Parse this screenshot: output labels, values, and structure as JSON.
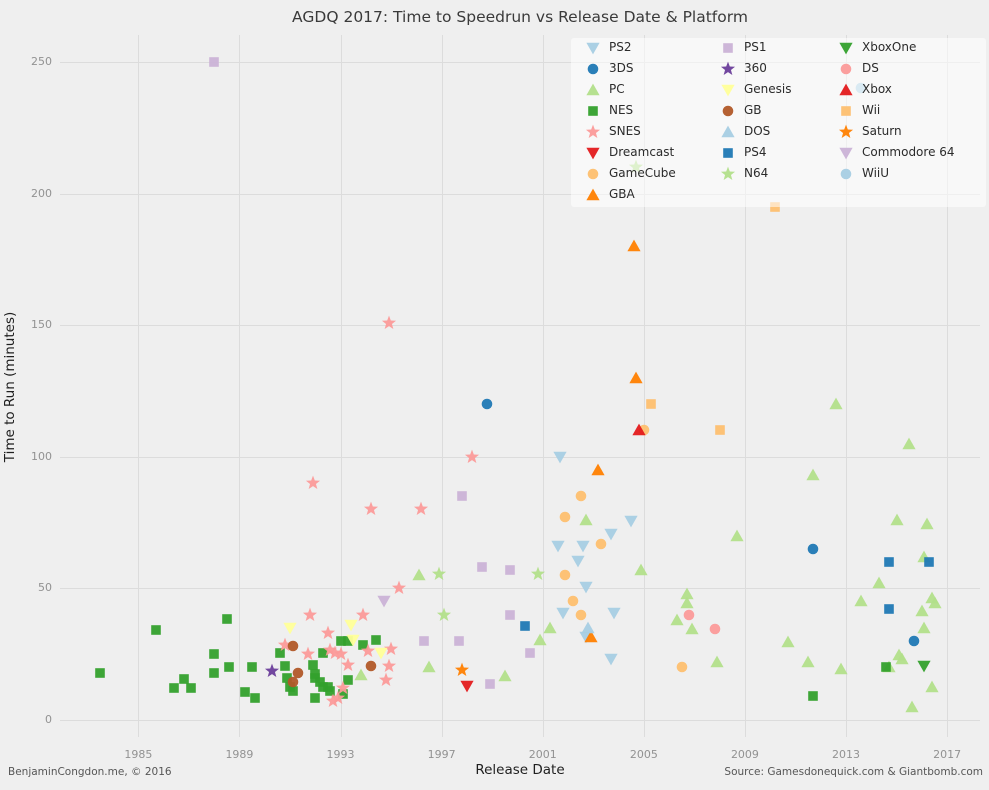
{
  "title": "AGDQ 2017: Time to Speedrun vs Release Date & Platform",
  "footer_left": "BenjaminCongdon.me, © 2016",
  "footer_right": "Source: Gamesdonequick.com & Giantbomb.com",
  "chart_data": {
    "type": "scatter",
    "title": "AGDQ 2017: Time to Speedrun vs Release Date & Platform",
    "xlabel": "Release Date",
    "ylabel": "Time to Run (minutes)",
    "xlim": [
      1981.9,
      2018.3
    ],
    "ylim": [
      -6.5,
      260.3
    ],
    "x_ticks": [
      1985,
      1989,
      1993,
      1997,
      2001,
      2005,
      2009,
      2013,
      2017
    ],
    "y_ticks": [
      0,
      50,
      100,
      150,
      200,
      250
    ],
    "grid": true,
    "legend_position": "top-right",
    "legend_columns": [
      8,
      7,
      7
    ],
    "series": [
      {
        "name": "PS2",
        "marker": "triangle-down",
        "color": "#a6cee3",
        "points": [
          [
            2001.7,
            100
          ],
          [
            2001.6,
            66
          ],
          [
            2002.6,
            66
          ],
          [
            2001.8,
            40.5
          ],
          [
            2004.5,
            75.5
          ],
          [
            2003.7,
            70.5
          ],
          [
            2002.4,
            60.5
          ],
          [
            2002.7,
            50.5
          ],
          [
            2003.8,
            40.5
          ],
          [
            2002.7,
            31.5
          ],
          [
            2003.7,
            23
          ]
        ]
      },
      {
        "name": "3DS",
        "marker": "circle",
        "color": "#1f78b4",
        "points": [
          [
            1998.8,
            120
          ],
          [
            2011.7,
            65
          ],
          [
            2015.7,
            30
          ]
        ]
      },
      {
        "name": "PC",
        "marker": "triangle-up",
        "color": "#b2df8a",
        "points": [
          [
            1993.8,
            17
          ],
          [
            1996.1,
            55
          ],
          [
            1996.5,
            20
          ],
          [
            1999.5,
            16.5
          ],
          [
            2000.9,
            30.5
          ],
          [
            2001.3,
            35
          ],
          [
            2002.7,
            76
          ],
          [
            2004.9,
            57
          ],
          [
            2006.3,
            38
          ],
          [
            2006.7,
            48
          ],
          [
            2006.7,
            44.5
          ],
          [
            2006.9,
            34.5
          ],
          [
            2007.9,
            22
          ],
          [
            2008.7,
            70
          ],
          [
            2010.7,
            29.5
          ],
          [
            2011.5,
            22
          ],
          [
            2011.7,
            93
          ],
          [
            2012.6,
            120
          ],
          [
            2012.8,
            19.5
          ],
          [
            2013.6,
            45
          ],
          [
            2014.3,
            52
          ],
          [
            2014.7,
            20
          ],
          [
            2015,
            76
          ],
          [
            2015.1,
            24.5
          ],
          [
            2015.2,
            23
          ],
          [
            2015.5,
            105
          ],
          [
            2015.6,
            5
          ],
          [
            2016,
            41.5
          ],
          [
            2016.1,
            62
          ],
          [
            2016.1,
            35
          ],
          [
            2016.2,
            74.5
          ],
          [
            2016.4,
            46.5
          ],
          [
            2016.4,
            12.5
          ],
          [
            2016.5,
            44.5
          ]
        ]
      },
      {
        "name": "NES",
        "marker": "square",
        "color": "#33a02c",
        "points": [
          [
            1983.5,
            18
          ],
          [
            1985.7,
            34
          ],
          [
            1986.4,
            12
          ],
          [
            1986.8,
            15.5
          ],
          [
            1987.1,
            12
          ],
          [
            1988,
            25
          ],
          [
            1988,
            18
          ],
          [
            1988.5,
            38.5
          ],
          [
            1988.6,
            20
          ],
          [
            1989.2,
            10.5
          ],
          [
            1989.5,
            20
          ],
          [
            1989.6,
            8.5
          ],
          [
            1990.6,
            25.5
          ],
          [
            1990.8,
            20.5
          ],
          [
            1990.9,
            16
          ],
          [
            1991,
            12.5
          ],
          [
            1991.1,
            11
          ],
          [
            1991.9,
            21
          ],
          [
            1992,
            17.5
          ],
          [
            1992,
            16
          ],
          [
            1992.2,
            14.5
          ],
          [
            1992.3,
            25.5
          ],
          [
            1992.3,
            12.5
          ],
          [
            1992.5,
            12.5
          ],
          [
            1992.6,
            11
          ],
          [
            1992,
            8.5
          ],
          [
            1993,
            30
          ],
          [
            1993.3,
            30
          ],
          [
            1993.3,
            15
          ],
          [
            1993.1,
            10
          ],
          [
            1993.9,
            28.5
          ],
          [
            1994.4,
            30.5
          ],
          [
            2011.7,
            9
          ],
          [
            2014.6,
            20
          ]
        ]
      },
      {
        "name": "SNES",
        "marker": "star",
        "color": "#fb9a99",
        "points": [
          [
            1990.8,
            28.5
          ],
          [
            1991.7,
            25
          ],
          [
            1991.8,
            40
          ],
          [
            1991.9,
            90
          ],
          [
            1992.5,
            33
          ],
          [
            1992.6,
            26.5
          ],
          [
            1992.8,
            25.5
          ],
          [
            1993,
            25
          ],
          [
            1992.7,
            7
          ],
          [
            1992.9,
            8.5
          ],
          [
            1993.1,
            12
          ],
          [
            1993.3,
            21
          ],
          [
            1993.9,
            40
          ],
          [
            1994.1,
            26
          ],
          [
            1994.2,
            80
          ],
          [
            1994.8,
            15
          ],
          [
            1994.9,
            20.5
          ],
          [
            1994.9,
            151
          ],
          [
            1995,
            27
          ],
          [
            1995.3,
            50
          ],
          [
            1996.2,
            80
          ],
          [
            1998.2,
            100
          ]
        ]
      },
      {
        "name": "Dreamcast",
        "marker": "triangle-down",
        "color": "#e31a1c",
        "points": [
          [
            1998,
            13
          ]
        ]
      },
      {
        "name": "GameCube",
        "marker": "circle",
        "color": "#fdbf6f",
        "points": [
          [
            2001.9,
            77
          ],
          [
            2001.9,
            55
          ],
          [
            2002.2,
            45
          ],
          [
            2002.5,
            85
          ],
          [
            2002.5,
            40
          ],
          [
            2003.3,
            67
          ],
          [
            2005,
            110
          ],
          [
            2006.5,
            20
          ]
        ]
      },
      {
        "name": "GBA",
        "marker": "triangle-up",
        "color": "#ff7f00",
        "points": [
          [
            2002.9,
            31.5
          ],
          [
            2003.2,
            95
          ],
          [
            2004.6,
            180
          ],
          [
            2004.7,
            130
          ]
        ]
      },
      {
        "name": "PS1",
        "marker": "square",
        "color": "#cab2d6",
        "points": [
          [
            1988,
            250
          ],
          [
            1996.3,
            30
          ],
          [
            1997.7,
            30
          ],
          [
            1997.8,
            85
          ],
          [
            1998.6,
            58
          ],
          [
            1998.9,
            13.5
          ],
          [
            1999.7,
            57
          ],
          [
            1999.7,
            40
          ],
          [
            2000.5,
            25.5
          ]
        ]
      },
      {
        "name": "360",
        "marker": "star",
        "color": "#6a3d9a",
        "points": [
          [
            1990.3,
            18.5
          ]
        ]
      },
      {
        "name": "Genesis",
        "marker": "triangle-down",
        "color": "#ffff99",
        "points": [
          [
            1991,
            35
          ],
          [
            1993.4,
            36
          ],
          [
            1993.5,
            30.5
          ],
          [
            1994.6,
            25.5
          ]
        ]
      },
      {
        "name": "GB",
        "marker": "circle",
        "color": "#b15928",
        "points": [
          [
            1991.1,
            28
          ],
          [
            1991.3,
            18
          ],
          [
            1991.1,
            14.5
          ],
          [
            1994.2,
            20.5
          ]
        ]
      },
      {
        "name": "DOS",
        "marker": "triangle-up",
        "color": "#a6cee3",
        "points": [
          [
            2002.8,
            35
          ]
        ]
      },
      {
        "name": "PS4",
        "marker": "square",
        "color": "#1f78b4",
        "points": [
          [
            2000.3,
            35.5
          ],
          [
            2014.7,
            60
          ],
          [
            2014.7,
            42
          ],
          [
            2016.3,
            60
          ]
        ]
      },
      {
        "name": "N64",
        "marker": "star",
        "color": "#b2df8a",
        "points": [
          [
            1996.9,
            55.5
          ],
          [
            1997.1,
            40
          ],
          [
            2000.8,
            55.5
          ],
          [
            2004.7,
            210
          ]
        ]
      },
      {
        "name": "XboxOne",
        "marker": "triangle-down",
        "color": "#33a02c",
        "points": [
          [
            2016.1,
            20.5
          ]
        ]
      },
      {
        "name": "DS",
        "marker": "circle",
        "color": "#fb9a99",
        "points": [
          [
            2006.8,
            40
          ],
          [
            2007.8,
            34.5
          ]
        ]
      },
      {
        "name": "Xbox",
        "marker": "triangle-up",
        "color": "#e31a1c",
        "points": [
          [
            2004.8,
            110
          ]
        ]
      },
      {
        "name": "Wii",
        "marker": "square",
        "color": "#fdbf6f",
        "points": [
          [
            2005.3,
            120
          ],
          [
            2008,
            110
          ],
          [
            2010.2,
            195
          ]
        ]
      },
      {
        "name": "Saturn",
        "marker": "star",
        "color": "#ff7f00",
        "points": [
          [
            1997.8,
            19
          ]
        ]
      },
      {
        "name": "Commodore 64",
        "marker": "triangle-down",
        "color": "#cab2d6",
        "points": [
          [
            1994.7,
            45
          ]
        ]
      },
      {
        "name": "WiiU",
        "marker": "circle",
        "color": "#a6cee3",
        "points": [
          [
            2013.6,
            240
          ]
        ]
      }
    ]
  }
}
